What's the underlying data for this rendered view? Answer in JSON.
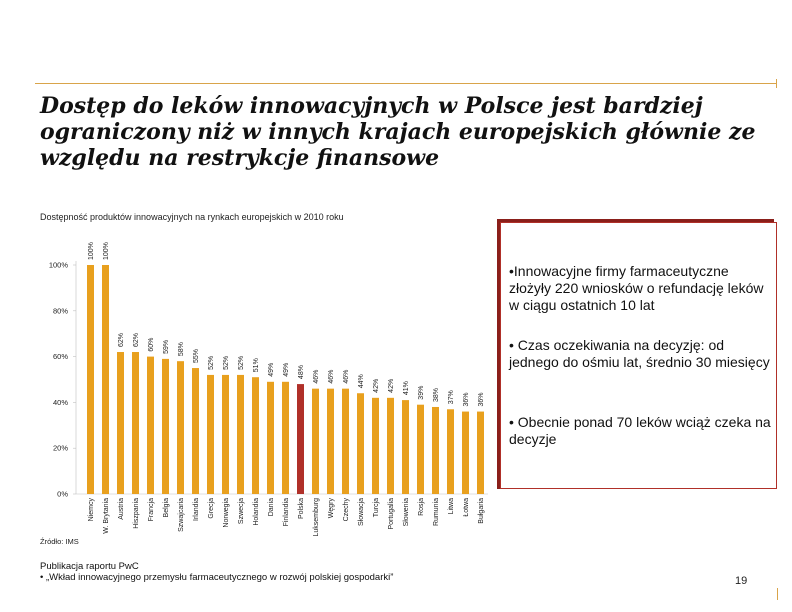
{
  "slide": {
    "title": "Dostęp do leków innowacyjnych w Polsce jest bardziej ograniczony niż w innych krajach europejskich głównie ze względu na restrykcje finansowe",
    "chart_title": "Dostępność produktów innowacyjnych na rynkach europejskich w 2010 roku",
    "source": "Źródło: IMS",
    "publication_heading": "Publikacja raportu PwC",
    "publication_line": "• „Wkład innowacyjnego przemysłu farmaceutycznego w rozwój polskiej gospodarki”",
    "page_number": "19",
    "accent_color": "#d9a44a"
  },
  "callout": {
    "border_color": "#b03029",
    "items": [
      "•Innowacyjne firmy farmaceutyczne złożyły 220 wniosków o refundację leków w ciągu ostatnich 10 lat",
      "• Czas oczekiwania na decyzję: od jednego do ośmiu lat, średnio 30 miesięcy",
      "• Obecnie ponad 70 leków wciąż czeka na decyzje"
    ]
  },
  "chart_data": {
    "type": "bar",
    "title": "Dostępność produktów innowacyjnych na rynkach europejskich w 2010 roku",
    "ylim": [
      0,
      100
    ],
    "y_ticks": [
      0,
      20,
      40,
      60,
      80,
      100
    ],
    "y_tick_labels": [
      "0%",
      "20%",
      "40%",
      "60%",
      "80%",
      "100%"
    ],
    "grid": false,
    "categories": [
      "Niemcy",
      "W. Brytania",
      "Austria",
      "Hiszpania",
      "Francja",
      "Belgia",
      "Szwajcaria",
      "Irlandia",
      "Grecja",
      "Norwegia",
      "Szwecja",
      "Holandia",
      "Dania",
      "Finlandia",
      "Polska",
      "Luksemburg",
      "Węgry",
      "Czechy",
      "Słowacja",
      "Turcja",
      "Portugalia",
      "Słowenia",
      "Rosja",
      "Rumunia",
      "Litwa",
      "Łotwa",
      "Bułgaria"
    ],
    "values": [
      100,
      100,
      62,
      62,
      60,
      59,
      58,
      55,
      52,
      52,
      52,
      51,
      49,
      49,
      48,
      46,
      46,
      46,
      44,
      42,
      42,
      41,
      39,
      38,
      37,
      36,
      36
    ],
    "value_labels": [
      "100%",
      "100%",
      "62%",
      "62%",
      "60%",
      "59%",
      "58%",
      "55%",
      "52%",
      "52%",
      "52%",
      "51%",
      "49%",
      "49%",
      "48%",
      "46%",
      "46%",
      "46%",
      "44%",
      "42%",
      "42%",
      "41%",
      "39%",
      "38%",
      "37%",
      "36%",
      "36%"
    ],
    "highlight": "Polska",
    "bar_color": "#e8a01e",
    "highlight_color": "#b03029"
  }
}
